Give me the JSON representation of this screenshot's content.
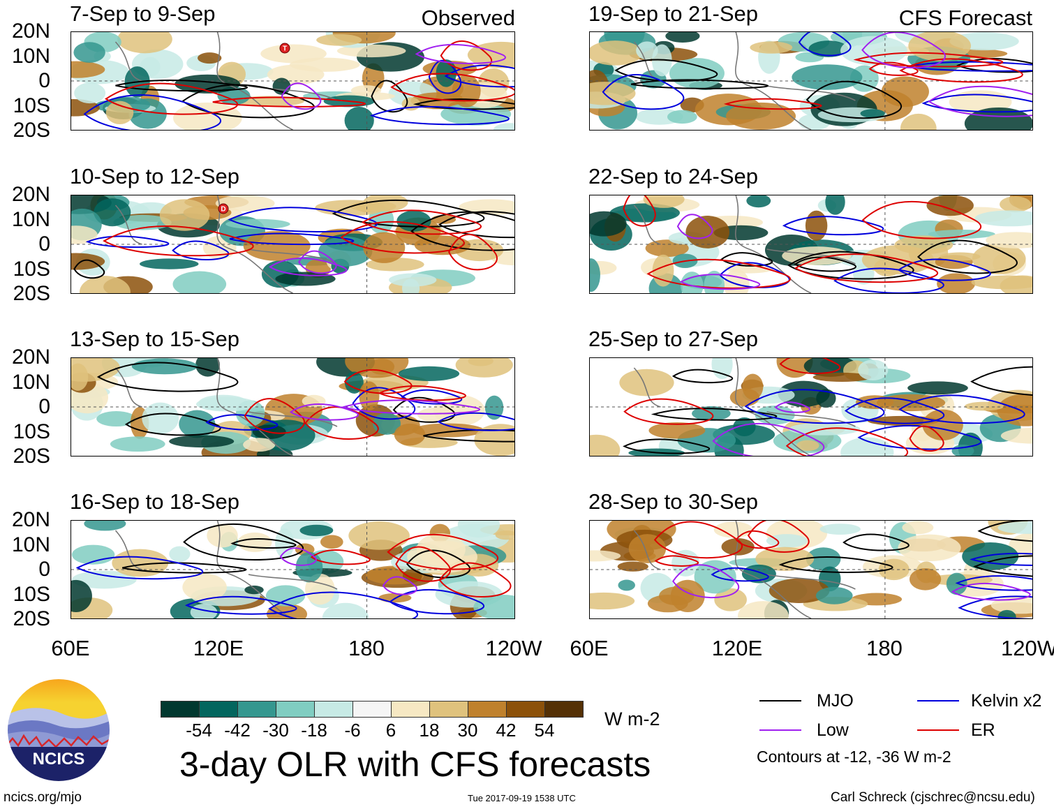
{
  "observed_label": "Observed",
  "forecast_label": "CFS Forecast",
  "observed_panels": [
    {
      "title": "7-Sep to 9-Sep",
      "storm": "T"
    },
    {
      "title": "10-Sep to 12-Sep",
      "storm": "D"
    },
    {
      "title": "13-Sep to 15-Sep",
      "storm": ""
    },
    {
      "title": "16-Sep to 18-Sep",
      "storm": ""
    }
  ],
  "forecast_panels": [
    {
      "title": "19-Sep to 21-Sep"
    },
    {
      "title": "22-Sep to 24-Sep"
    },
    {
      "title": "25-Sep to 27-Sep"
    },
    {
      "title": "28-Sep to 30-Sep"
    }
  ],
  "lat_labels": [
    "20N",
    "10N",
    "0",
    "10S",
    "20S"
  ],
  "lon_labels": [
    "60E",
    "120E",
    "180",
    "120W"
  ],
  "colorbar": {
    "labels": [
      "-54",
      "-42",
      "-30",
      "-18",
      "-6",
      "6",
      "18",
      "30",
      "42",
      "54"
    ],
    "colors": [
      "#01382f",
      "#03665e",
      "#35978f",
      "#80cdc1",
      "#c7eae5",
      "#f5f5f5",
      "#f6e8c3",
      "#dfc27d",
      "#bf812d",
      "#8c510a",
      "#543005"
    ],
    "units": "W m-2"
  },
  "main_title": "3-day OLR with CFS forecasts",
  "legend": {
    "items": [
      {
        "label": "MJO",
        "color": "#000000"
      },
      {
        "label": "Kelvin x2",
        "color": "#0000dd"
      },
      {
        "label": "Low",
        "color": "#a020f0"
      },
      {
        "label": "ER",
        "color": "#dd0000"
      }
    ],
    "note": "Contours at -12, -36 W m-2"
  },
  "logo_text": "NCICS",
  "footer": {
    "left": "ncics.org/mjo",
    "center": "Tue 2017-09-19 1538 UTC",
    "right": "Carl Schreck (cjschrec@ncsu.edu)"
  }
}
